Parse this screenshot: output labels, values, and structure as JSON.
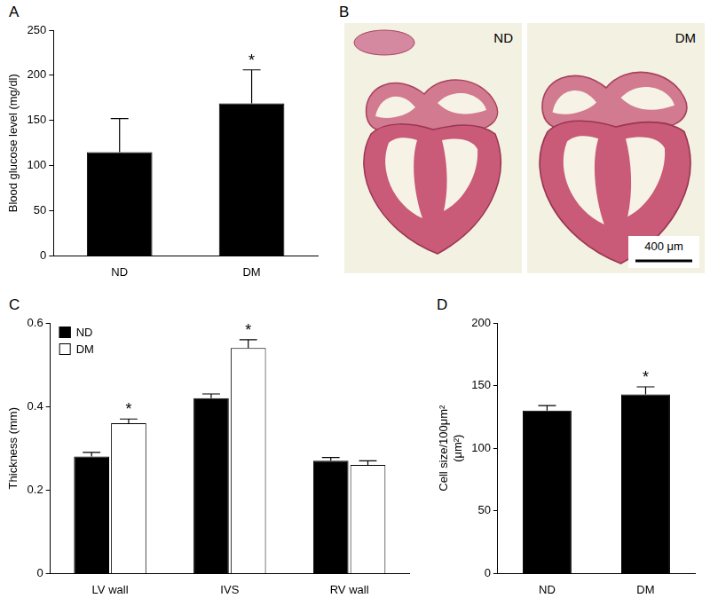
{
  "chart_data": [
    {
      "panel_label": "A",
      "type": "bar",
      "categories": [
        "ND",
        "DM"
      ],
      "values": [
        115,
        169
      ],
      "errors": [
        37,
        37
      ],
      "color": "#000000",
      "y_label": "Blood glucose level (mg/dl)",
      "ylim": [
        0,
        250
      ],
      "yticks": [
        0,
        50,
        100,
        150,
        200,
        250
      ],
      "grid": false,
      "annotations": [
        {
          "text": "*",
          "category": "DM"
        }
      ]
    },
    {
      "panel_label": "C",
      "type": "bar",
      "categories": [
        "LV wall",
        "IVS",
        "RV wall"
      ],
      "series": [
        {
          "name": "ND",
          "color": "#000000",
          "values": [
            0.28,
            0.42,
            0.27
          ],
          "errors": [
            0.01,
            0.01,
            0.008
          ]
        },
        {
          "name": "DM",
          "color": "#ffffff",
          "values": [
            0.36,
            0.54,
            0.26
          ],
          "errors": [
            0.01,
            0.02,
            0.01
          ]
        }
      ],
      "y_label": "Thickness (mm)",
      "ylim": [
        0,
        0.6
      ],
      "yticks": [
        0,
        0.2,
        0.4,
        0.6
      ],
      "legend": "upper left",
      "grid": false,
      "annotations": [
        {
          "text": "*",
          "category": "LV wall",
          "series": "DM"
        },
        {
          "text": "*",
          "category": "IVS",
          "series": "DM"
        }
      ]
    },
    {
      "panel_label": "D",
      "type": "bar",
      "categories": [
        "ND",
        "DM"
      ],
      "values": [
        130,
        143
      ],
      "errors": [
        4,
        6
      ],
      "color": "#000000",
      "y_label": [
        "Cell size/100μm²",
        "(μm²)"
      ],
      "ylim": [
        0,
        200
      ],
      "yticks": [
        0,
        50,
        100,
        150,
        200
      ],
      "grid": false,
      "annotations": [
        {
          "text": "*",
          "category": "DM"
        }
      ]
    }
  ],
  "image_panel": {
    "panel_label": "B",
    "images": [
      {
        "label": "ND"
      },
      {
        "label": "DM"
      }
    ],
    "scale_bar": "400 μm"
  }
}
